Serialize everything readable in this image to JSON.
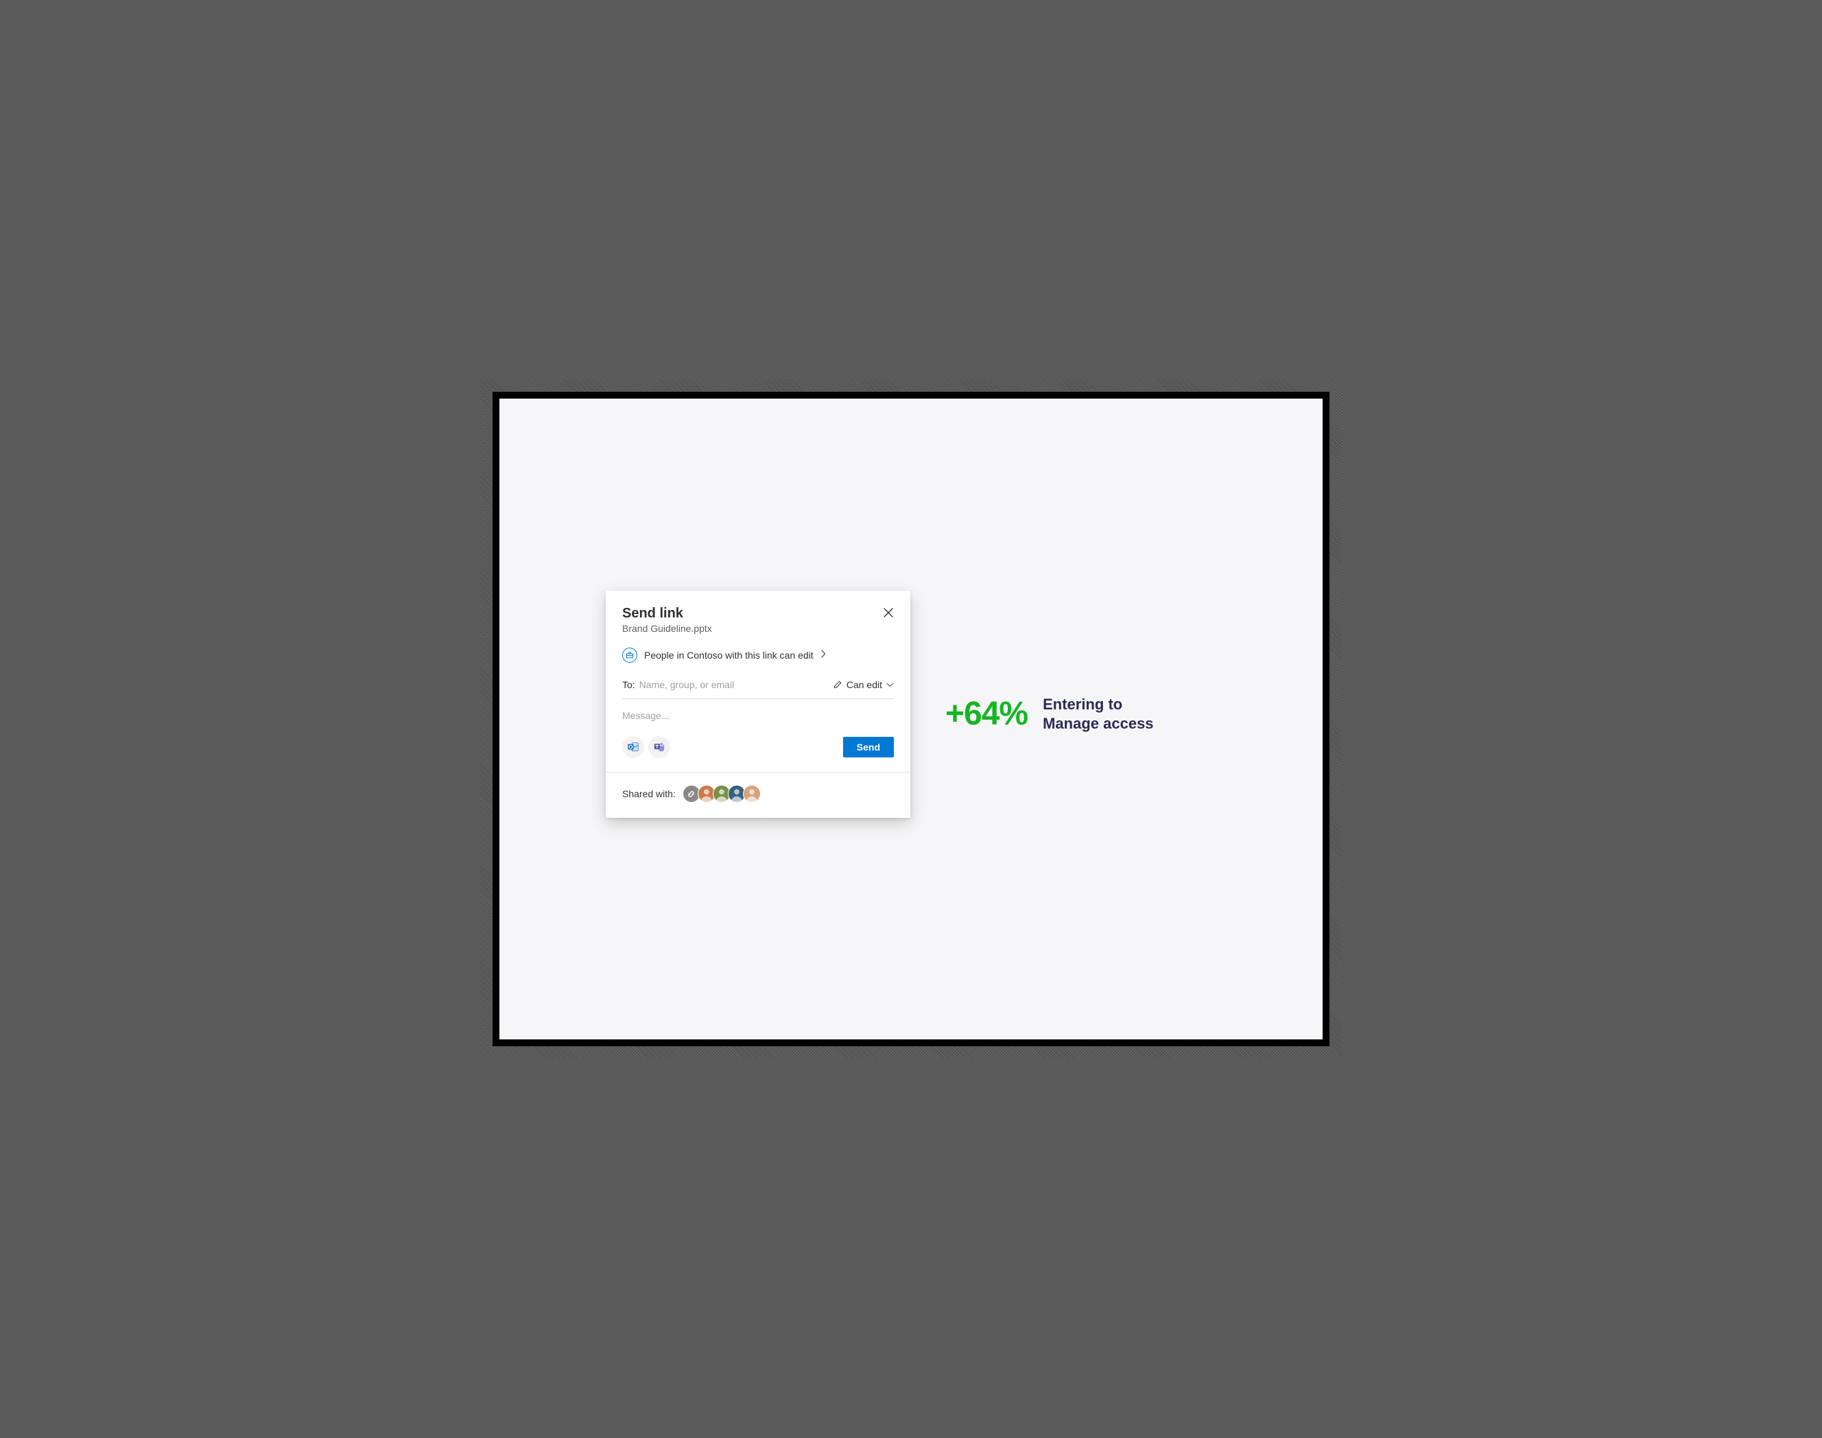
{
  "colors": {
    "canvas_bg": "#f6f6f8",
    "dialog_bg": "#ffffff",
    "text_primary": "#323130",
    "text_secondary": "#605e5c",
    "accent": "#0078d4",
    "metric_green": "#16b524",
    "metric_text": "#2b2b55",
    "send_button_bg": "#0078d4",
    "send_button_text": "#ffffff",
    "outlook_blue": "#0f6cbd",
    "teams_purple": "#5558af",
    "divider": "#e1dfdd"
  },
  "dialog": {
    "title": "Send link",
    "filename": "Brand Guideline.pptx",
    "permission_text": "People in Contoso with this link can edit",
    "to_label": "To:",
    "to_placeholder": "Name, group, or email",
    "edit_dropdown_label": "Can edit",
    "message_placeholder": "Message...",
    "send_label": "Send",
    "shared_with_label": "Shared with:",
    "avatars": [
      {
        "type": "link",
        "bg": "#8a8886"
      },
      {
        "type": "person",
        "bg": "#c97b4e"
      },
      {
        "type": "person",
        "bg": "#7b8f4a"
      },
      {
        "type": "person",
        "bg": "#3b5f7a"
      },
      {
        "type": "person",
        "bg": "#d8a37a"
      }
    ]
  },
  "metric": {
    "value": "+64%",
    "caption_line1": "Entering to",
    "caption_line2": "Manage access",
    "value_color": "#16b524",
    "caption_color": "#2b2b55",
    "value_fontsize": 48,
    "caption_fontsize": 22
  }
}
